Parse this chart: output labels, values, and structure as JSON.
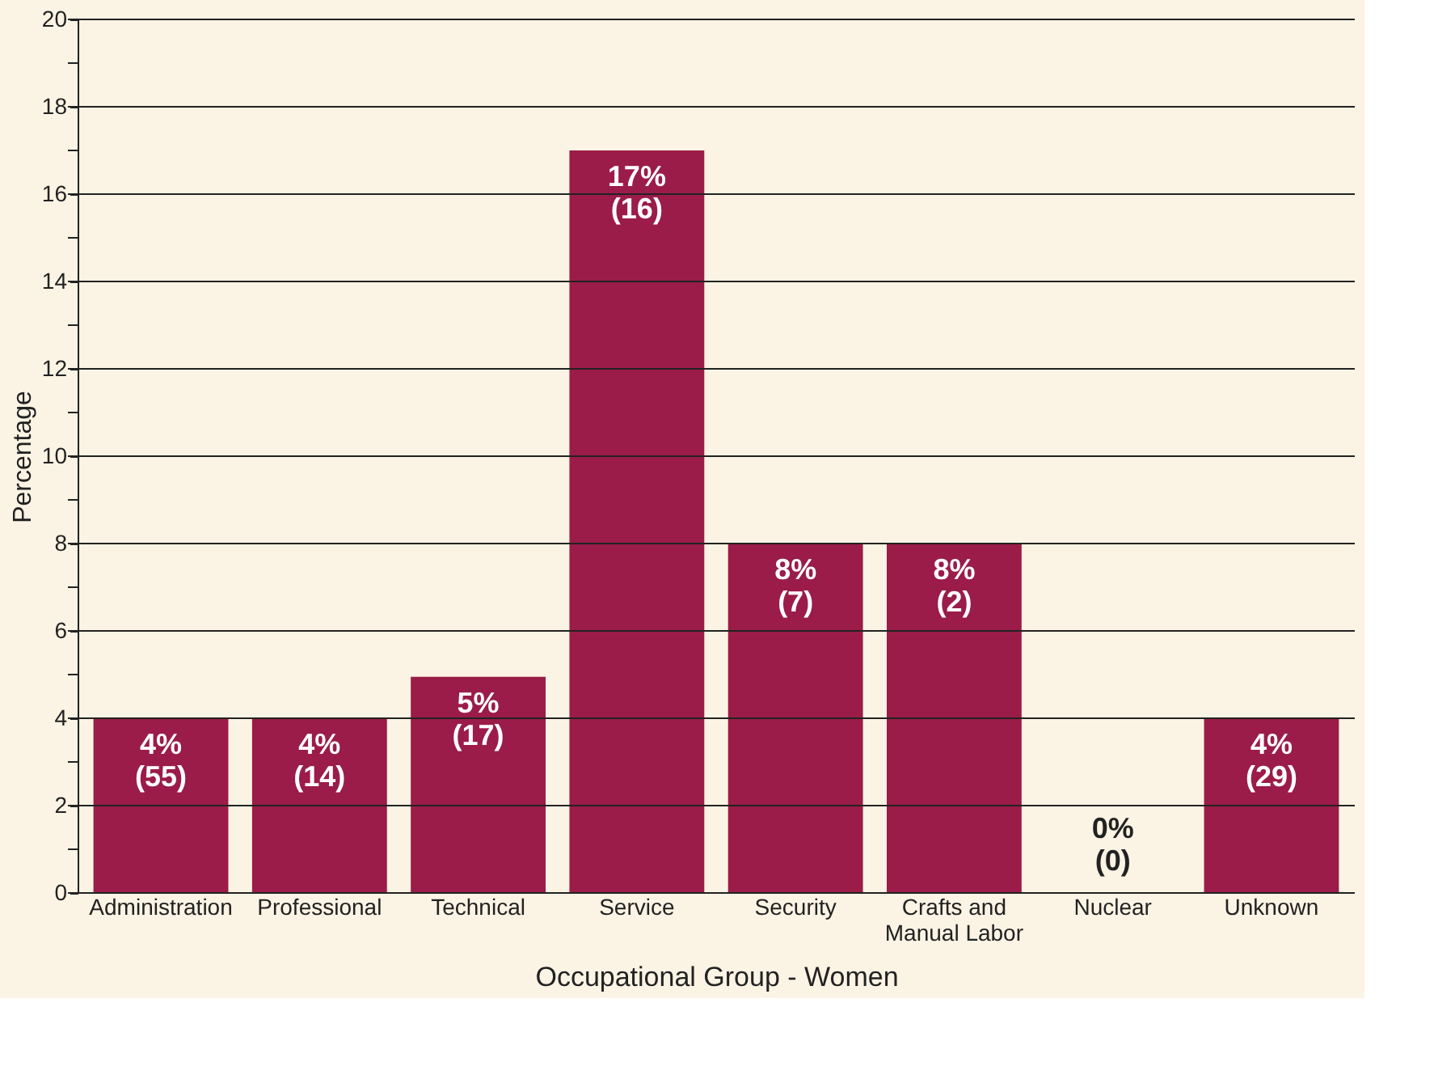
{
  "chart_data": {
    "type": "bar",
    "xlabel": "Occupational Group - Women",
    "ylabel": "Percentage",
    "categories": [
      "Administration",
      "Professional",
      "Technical",
      "Service",
      "Security",
      "Crafts and Manual Labor",
      "Nuclear",
      "Unknown"
    ],
    "values": [
      4,
      4,
      4.95,
      17,
      8,
      8,
      0,
      4
    ],
    "value_labels": [
      "4%\n(55)",
      "4%\n(14)",
      "5%\n(17)",
      "17%\n(16)",
      "8%\n(7)",
      "8%\n(2)",
      "0%\n(0)",
      "4%\n(29)"
    ],
    "color": "#9b1c48",
    "ylim": [
      0,
      20
    ],
    "yticks": [
      0,
      {
        "value": 1,
        "label": null
      },
      2,
      {
        "value": 3,
        "label": null
      },
      4,
      {
        "value": 5,
        "label": null
      },
      6,
      {
        "value": 7,
        "label": null
      },
      8,
      {
        "value": 9,
        "label": null
      },
      10,
      {
        "value": 11,
        "label": null
      },
      12,
      {
        "value": 13,
        "label": null
      },
      14,
      {
        "value": 15,
        "label": null
      },
      16,
      {
        "value": 17,
        "label": null
      },
      18,
      {
        "value": 19,
        "label": null
      },
      20
    ],
    "grid": "y"
  }
}
